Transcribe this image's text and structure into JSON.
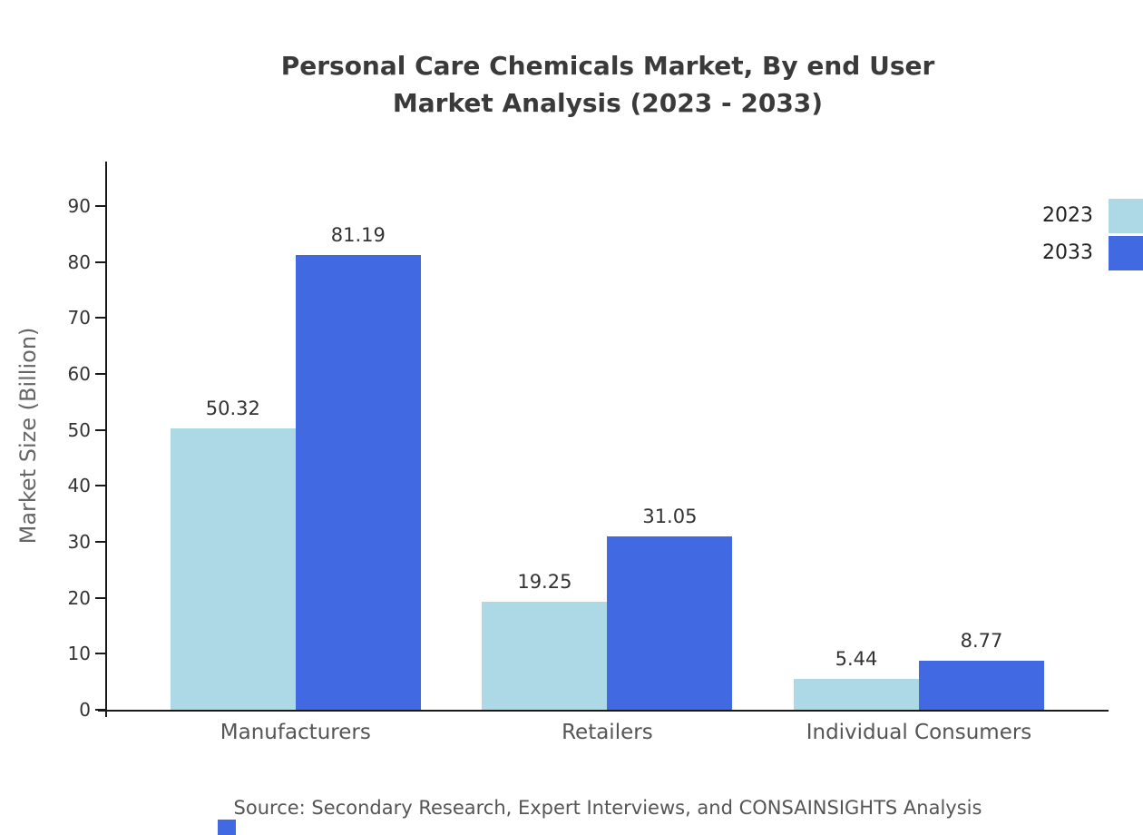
{
  "title": {
    "line1": "Personal Care Chemicals Market, By end User",
    "line2": "Market Analysis (2023 - 2033)"
  },
  "source": "Source: Secondary Research, Expert Interviews, and CONSAINSIGHTS Analysis",
  "colors": {
    "series_2023": "#add8e6",
    "series_2033": "#4169e1",
    "axis": "#1a1a1a",
    "title_text": "#3a3a3a",
    "label_text": "#555555"
  },
  "chart_data": {
    "type": "bar",
    "categories": [
      "Manufacturers",
      "Retailers",
      "Individual Consumers"
    ],
    "series": [
      {
        "name": "2023",
        "color": "#add8e6",
        "values": [
          50.32,
          19.25,
          5.44
        ]
      },
      {
        "name": "2033",
        "color": "#4169e1",
        "values": [
          81.19,
          31.05,
          8.77
        ]
      }
    ],
    "title": "Personal Care Chemicals Market, By end User Market Analysis (2023 - 2033)",
    "xlabel": "",
    "ylabel": "Market Size (Billion)",
    "yticks": [
      0,
      10,
      20,
      30,
      40,
      50,
      60,
      70,
      80,
      90
    ],
    "ylim": [
      0,
      97
    ],
    "grid": false,
    "legend_position": "top-right",
    "value_labels": true
  }
}
